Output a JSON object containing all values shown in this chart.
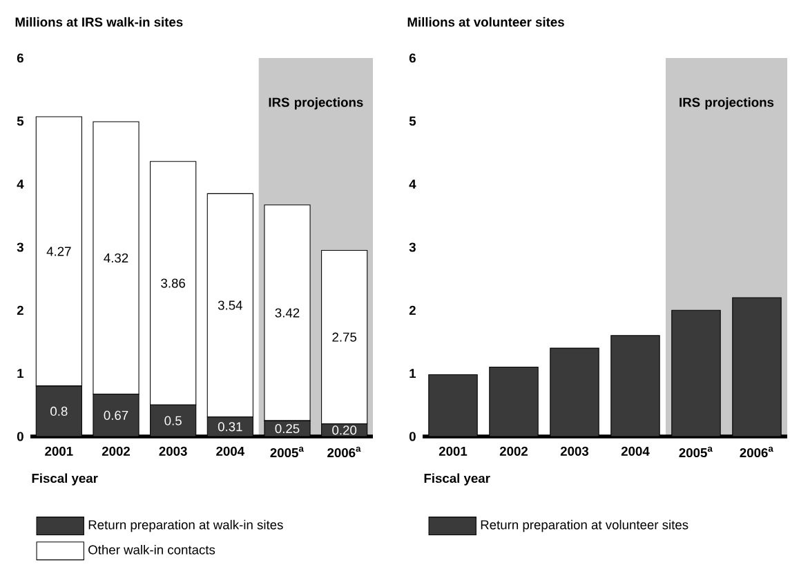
{
  "chart_data": [
    {
      "type": "bar",
      "stacked": true,
      "ylabel": "Millions at IRS walk-in sites",
      "xlabel": "Fiscal year",
      "categories": [
        "2001",
        "2002",
        "2003",
        "2004",
        "2005$^{a}$",
        "2006$^{a}$"
      ],
      "series": [
        {
          "name": "Return preparation at walk-in sites",
          "color": "#3a3a3a",
          "values": [
            0.8,
            0.67,
            0.5,
            0.31,
            0.25,
            0.2
          ],
          "value_labels": [
            "0.8",
            "0.67",
            "0.5",
            "0.31",
            "0.25",
            "0.20"
          ]
        },
        {
          "name": "Other walk-in contacts",
          "color": "#ffffff",
          "values": [
            4.27,
            4.32,
            3.86,
            3.54,
            3.42,
            2.75
          ],
          "value_labels": [
            "4.27",
            "4.32",
            "3.86",
            "3.54",
            "3.42",
            "2.75"
          ]
        }
      ],
      "ylim": [
        0,
        6
      ],
      "yticks": [
        0,
        1,
        2,
        3,
        4,
        5,
        6
      ],
      "legend": "bottom",
      "bands": [
        {
          "axis": "x",
          "from": "2005$^{a}$",
          "to": "2006$^{a}$",
          "label": "IRS projections",
          "color": "#c8c8c8"
        }
      ]
    },
    {
      "type": "bar",
      "ylabel": "Millions at volunteer sites",
      "xlabel": "Fiscal year",
      "categories": [
        "2001",
        "2002",
        "2003",
        "2004",
        "2005$^{a}$",
        "2006$^{a}$"
      ],
      "series": [
        {
          "name": "Return preparation at volunteer sites",
          "color": "#3a3a3a",
          "values": [
            0.98,
            1.1,
            1.4,
            1.6,
            2.0,
            2.2
          ]
        }
      ],
      "ylim": [
        0,
        6
      ],
      "yticks": [
        0,
        1,
        2,
        3,
        4,
        5,
        6
      ],
      "legend": "bottom",
      "bands": [
        {
          "axis": "x",
          "from": "2005$^{a}$",
          "to": "2006$^{a}$",
          "label": "IRS projections",
          "color": "#c8c8c8"
        }
      ]
    }
  ]
}
